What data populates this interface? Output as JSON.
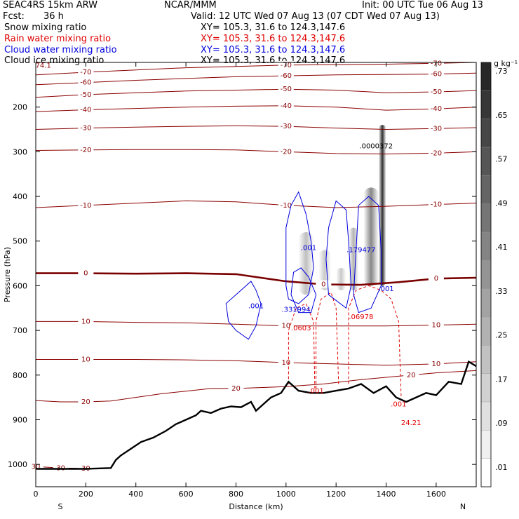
{
  "header": {
    "model_title": "SEAC4RS 15km ARW",
    "org": "NCAR/MMM",
    "init": "Init: 00 UTC Tue 06 Aug 13",
    "fcst_label": "Fcst:",
    "fcst_value": "36 h",
    "valid": "Valid: 12 UTC Wed 07 Aug 13 (07 CDT Wed 07 Aug 13)",
    "fields": [
      {
        "name": "Snow mixing ratio",
        "xy": "XY= 105.3, 31.6 to 124.3,147.6",
        "color": "#000000"
      },
      {
        "name": "Rain water mixing ratio",
        "xy": "XY= 105.3, 31.6 to 124.3,147.6",
        "color": "#e00000"
      },
      {
        "name": "Cloud water mixing ratio",
        "xy": "XY= 105.3, 31.6 to 124.3,147.6",
        "color": "#0000dd"
      },
      {
        "name": "Cloud ice mixing ratio",
        "xy": "XY= 105.3, 31.6 to 124.3,147.6",
        "color": "#000000"
      }
    ]
  },
  "chart_data": {
    "type": "cross-section",
    "xlabel": "Distance (km)",
    "ylabel": "Pressure (hPa)",
    "xlim": [
      0,
      1760
    ],
    "ylim": [
      1050,
      100
    ],
    "x_ticks": [
      0,
      200,
      400,
      600,
      800,
      1000,
      1200,
      1400,
      1600
    ],
    "y_ticks": [
      200,
      300,
      400,
      500,
      600,
      700,
      800,
      900,
      1000
    ],
    "x_end_labels": {
      "left": "S",
      "right": "N"
    },
    "colorbar": {
      "unit": "g kg⁻¹",
      "labels": [
        ".01",
        ".09",
        ".17",
        ".25",
        ".33",
        ".41",
        ".49",
        ".57",
        ".65",
        ".73"
      ]
    },
    "temperature_contours": [
      {
        "label": "-70",
        "points": [
          [
            0,
            128
          ],
          [
            200,
            122
          ],
          [
            400,
            117
          ],
          [
            600,
            112
          ],
          [
            800,
            109
          ],
          [
            1000,
            106
          ],
          [
            1200,
            105
          ],
          [
            1400,
            104
          ],
          [
            1600,
            102
          ],
          [
            1760,
            100
          ]
        ]
      },
      {
        "label": "-60",
        "points": [
          [
            0,
            150
          ],
          [
            200,
            145
          ],
          [
            400,
            140
          ],
          [
            600,
            136
          ],
          [
            800,
            132
          ],
          [
            1000,
            130
          ],
          [
            1200,
            128
          ],
          [
            1400,
            127
          ],
          [
            1600,
            126
          ],
          [
            1760,
            124
          ]
        ]
      },
      {
        "label": "-50",
        "points": [
          [
            0,
            178
          ],
          [
            200,
            172
          ],
          [
            400,
            168
          ],
          [
            600,
            164
          ],
          [
            800,
            162
          ],
          [
            1000,
            160
          ],
          [
            1200,
            162
          ],
          [
            1400,
            168
          ],
          [
            1600,
            166
          ],
          [
            1760,
            163
          ]
        ]
      },
      {
        "label": "-40",
        "points": [
          [
            0,
            210
          ],
          [
            200,
            206
          ],
          [
            400,
            203
          ],
          [
            600,
            200
          ],
          [
            800,
            198
          ],
          [
            1000,
            197
          ],
          [
            1200,
            200
          ],
          [
            1400,
            207
          ],
          [
            1600,
            204
          ],
          [
            1760,
            200
          ]
        ]
      },
      {
        "label": "-30",
        "points": [
          [
            0,
            250
          ],
          [
            200,
            247
          ],
          [
            400,
            245
          ],
          [
            600,
            243
          ],
          [
            800,
            242
          ],
          [
            1000,
            243
          ],
          [
            1200,
            247
          ],
          [
            1400,
            250
          ],
          [
            1600,
            248
          ],
          [
            1760,
            246
          ]
        ]
      },
      {
        "label": "-20",
        "points": [
          [
            0,
            297
          ],
          [
            200,
            296
          ],
          [
            400,
            295
          ],
          [
            600,
            295
          ],
          [
            800,
            296
          ],
          [
            1000,
            300
          ],
          [
            1200,
            304
          ],
          [
            1400,
            305
          ],
          [
            1600,
            303
          ],
          [
            1760,
            300
          ]
        ]
      },
      {
        "label": "-10",
        "points": [
          [
            0,
            425
          ],
          [
            200,
            420
          ],
          [
            400,
            415
          ],
          [
            600,
            410
          ],
          [
            800,
            412
          ],
          [
            1000,
            420
          ],
          [
            1200,
            425
          ],
          [
            1400,
            422
          ],
          [
            1600,
            418
          ],
          [
            1760,
            415
          ]
        ]
      },
      {
        "label": "0",
        "points": [
          [
            0,
            572
          ],
          [
            200,
            572
          ],
          [
            400,
            573
          ],
          [
            600,
            572
          ],
          [
            800,
            574
          ],
          [
            1000,
            590
          ],
          [
            1150,
            597
          ],
          [
            1300,
            598
          ],
          [
            1450,
            592
          ],
          [
            1600,
            584
          ],
          [
            1760,
            582
          ]
        ]
      },
      {
        "label": "10",
        "points": [
          [
            0,
            680
          ],
          [
            200,
            680
          ],
          [
            400,
            682
          ],
          [
            600,
            683
          ],
          [
            800,
            686
          ],
          [
            1000,
            690
          ],
          [
            1200,
            690
          ],
          [
            1400,
            690
          ],
          [
            1600,
            688
          ],
          [
            1760,
            686
          ]
        ]
      },
      {
        "label": "10",
        "points": [
          [
            0,
            765
          ],
          [
            200,
            765
          ],
          [
            400,
            765
          ],
          [
            600,
            766
          ],
          [
            800,
            768
          ],
          [
            1000,
            772
          ],
          [
            1200,
            775
          ],
          [
            1400,
            778
          ],
          [
            1600,
            775
          ],
          [
            1760,
            770
          ]
        ]
      },
      {
        "label": "20",
        "points": [
          [
            0,
            857
          ],
          [
            100,
            860
          ],
          [
            200,
            860
          ],
          [
            300,
            858
          ],
          [
            400,
            850
          ],
          [
            500,
            842
          ],
          [
            600,
            836
          ],
          [
            700,
            830
          ],
          [
            800,
            830
          ],
          [
            1000,
            826
          ],
          [
            1150,
            820
          ],
          [
            1300,
            810
          ],
          [
            1400,
            805
          ],
          [
            1500,
            800
          ],
          [
            1600,
            795
          ],
          [
            1760,
            790
          ]
        ]
      },
      {
        "label": "30",
        "points": [
          [
            0,
            1005
          ],
          [
            100,
            1008
          ],
          [
            200,
            1009
          ]
        ]
      }
    ],
    "terrain": [
      [
        0,
        1010
      ],
      [
        100,
        1010
      ],
      [
        200,
        1010
      ],
      [
        300,
        1008
      ],
      [
        320,
        990
      ],
      [
        340,
        980
      ],
      [
        380,
        965
      ],
      [
        420,
        950
      ],
      [
        470,
        940
      ],
      [
        520,
        925
      ],
      [
        560,
        910
      ],
      [
        600,
        900
      ],
      [
        640,
        890
      ],
      [
        660,
        880
      ],
      [
        700,
        885
      ],
      [
        740,
        875
      ],
      [
        780,
        870
      ],
      [
        820,
        872
      ],
      [
        860,
        860
      ],
      [
        880,
        880
      ],
      [
        900,
        870
      ],
      [
        940,
        850
      ],
      [
        980,
        840
      ],
      [
        1010,
        815
      ],
      [
        1050,
        835
      ],
      [
        1100,
        840
      ],
      [
        1150,
        840
      ],
      [
        1200,
        835
      ],
      [
        1250,
        830
      ],
      [
        1300,
        820
      ],
      [
        1350,
        840
      ],
      [
        1400,
        825
      ],
      [
        1440,
        850
      ],
      [
        1480,
        860
      ],
      [
        1520,
        850
      ],
      [
        1560,
        840
      ],
      [
        1600,
        845
      ],
      [
        1650,
        815
      ],
      [
        1700,
        820
      ],
      [
        1730,
        770
      ],
      [
        1760,
        780
      ]
    ],
    "max_labels": [
      {
        "text": "74.1",
        "x": 30,
        "p": 112
      },
      {
        "text": ".0000372",
        "x": 1360,
        "p": 292
      },
      {
        "text": ".179477",
        "x": 1300,
        "p": 525
      },
      {
        "text": ".001",
        "x": 1090,
        "p": 520
      },
      {
        "text": ".001",
        "x": 880,
        "p": 650
      },
      {
        "text": ".331994",
        "x": 1040,
        "p": 658
      },
      {
        "text": ".0603",
        "x": 1060,
        "p": 700
      },
      {
        "text": ".06978",
        "x": 1300,
        "p": 675
      },
      {
        "text": ".001",
        "x": 1400,
        "p": 612
      },
      {
        "text": ".001",
        "x": 1120,
        "p": 840
      },
      {
        "text": ".001",
        "x": 1450,
        "p": 870
      },
      {
        "text": "24.21",
        "x": 1500,
        "p": 912
      }
    ]
  },
  "colors": {
    "temperature_contour": "#8b0000",
    "zero_isotherm": "#7a0000",
    "rain": "#e00000",
    "cloud_water": "#0000dd",
    "snow_shade": "#333333",
    "terrain": "#000000"
  }
}
